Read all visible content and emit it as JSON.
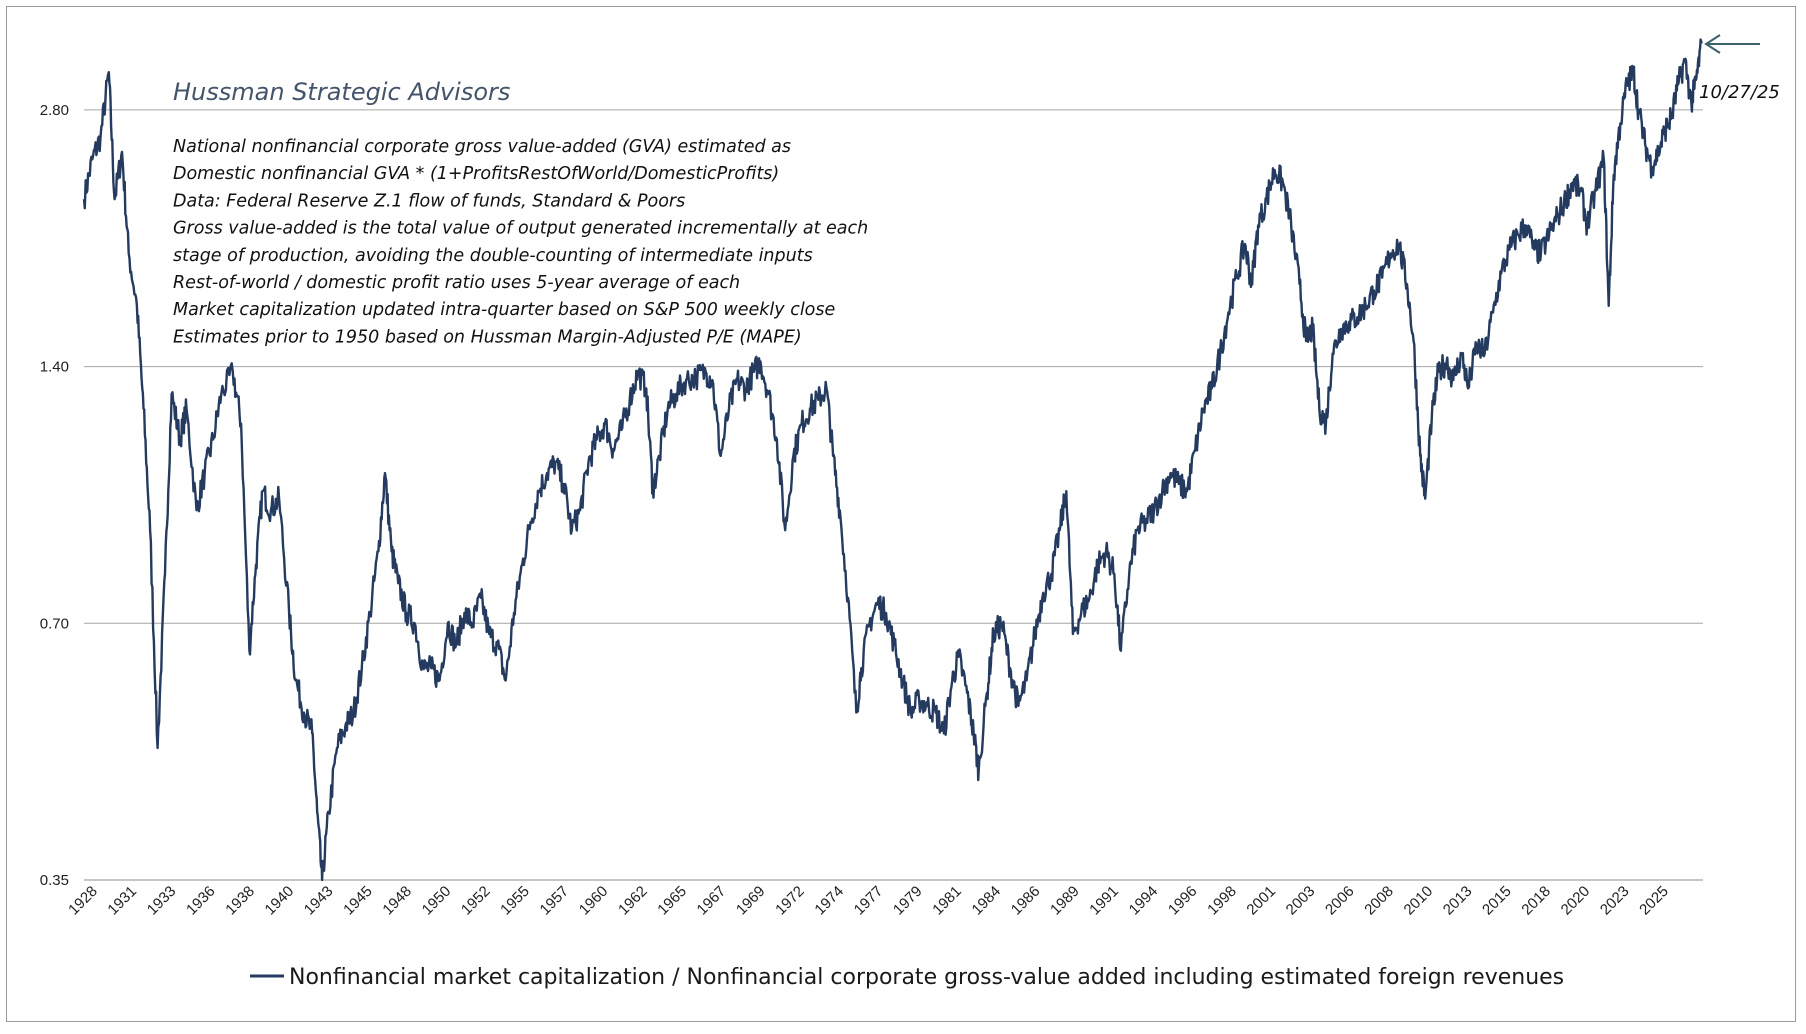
{
  "chart_data": {
    "type": "line",
    "title": "",
    "annotation_brand": "Hussman Strategic Advisors",
    "notes": [
      "National nonfinancial corporate gross value-added (GVA) estimated as",
      "Domestic nonfinancial GVA * (1+ProfitsRestOfWorld/DomesticProfits)",
      "Data: Federal Reserve Z.1 flow of funds, Standard & Poors",
      "Gross value-added is the total value of output generated incrementally at each",
      "stage of production, avoiding the double-counting of intermediate inputs",
      "Rest-of-world / domestic profit ratio uses 5-year average of each",
      "Market capitalization updated intra-quarter based on S&P 500 weekly close",
      "Estimates prior to 1950 based on Hussman Margin-Adjusted P/E (MAPE)"
    ],
    "end_date_label": "10/27/25",
    "y_scale": "log",
    "ylim": [
      0.35,
      3.4
    ],
    "y_ticks": [
      "2.80",
      "1.40",
      "0.70",
      "0.35"
    ],
    "y_tick_values": [
      2.8,
      1.4,
      0.7,
      0.35
    ],
    "x_range": [
      1928,
      2025.9
    ],
    "x_ticks": [
      "1928",
      "1931",
      "1933",
      "1936",
      "1938",
      "1940",
      "1943",
      "1945",
      "1948",
      "1950",
      "1952",
      "1955",
      "1957",
      "1960",
      "1962",
      "1965",
      "1967",
      "1969",
      "1972",
      "1974",
      "1977",
      "1979",
      "1981",
      "1984",
      "1986",
      "1989",
      "1991",
      "1994",
      "1996",
      "1998",
      "2001",
      "2003",
      "2006",
      "2008",
      "2010",
      "2013",
      "2015",
      "2018",
      "2020",
      "2023",
      "2025"
    ],
    "grid": "horizontal",
    "legend_position": "bottom",
    "series": [
      {
        "name": "Nonfinancial market capitalization / Nonfinancial corporate gross-value added including estimated foreign revenues",
        "color": "#243a5e",
        "points": [
          [
            1928.0,
            2.2
          ],
          [
            1928.5,
            2.45
          ],
          [
            1929.0,
            2.6
          ],
          [
            1929.5,
            3.1
          ],
          [
            1929.85,
            2.2
          ],
          [
            1930.3,
            2.5
          ],
          [
            1930.7,
            1.9
          ],
          [
            1931.2,
            1.65
          ],
          [
            1931.6,
            1.25
          ],
          [
            1932.0,
            0.9
          ],
          [
            1932.45,
            0.5
          ],
          [
            1932.9,
            0.8
          ],
          [
            1933.3,
            1.3
          ],
          [
            1933.8,
            1.15
          ],
          [
            1934.2,
            1.25
          ],
          [
            1934.8,
            0.95
          ],
          [
            1935.3,
            1.05
          ],
          [
            1935.8,
            1.15
          ],
          [
            1936.3,
            1.3
          ],
          [
            1937.0,
            1.38
          ],
          [
            1937.5,
            1.2
          ],
          [
            1938.0,
            0.65
          ],
          [
            1938.4,
            0.82
          ],
          [
            1938.8,
            1.0
          ],
          [
            1939.3,
            0.95
          ],
          [
            1939.8,
            0.98
          ],
          [
            1940.4,
            0.72
          ],
          [
            1940.8,
            0.6
          ],
          [
            1941.3,
            0.55
          ],
          [
            1941.8,
            0.52
          ],
          [
            1942.1,
            0.42
          ],
          [
            1942.4,
            0.35
          ],
          [
            1942.8,
            0.42
          ],
          [
            1943.3,
            0.5
          ],
          [
            1943.8,
            0.53
          ],
          [
            1944.3,
            0.55
          ],
          [
            1944.8,
            0.62
          ],
          [
            1945.3,
            0.72
          ],
          [
            1945.8,
            0.85
          ],
          [
            1946.2,
            1.05
          ],
          [
            1946.6,
            0.85
          ],
          [
            1947.0,
            0.78
          ],
          [
            1947.5,
            0.72
          ],
          [
            1948.0,
            0.7
          ],
          [
            1948.5,
            0.62
          ],
          [
            1949.0,
            0.62
          ],
          [
            1949.5,
            0.6
          ],
          [
            1950.0,
            0.7
          ],
          [
            1950.5,
            0.66
          ],
          [
            1951.0,
            0.72
          ],
          [
            1951.5,
            0.7
          ],
          [
            1952.0,
            0.75
          ],
          [
            1952.5,
            0.68
          ],
          [
            1953.0,
            0.66
          ],
          [
            1953.5,
            0.6
          ],
          [
            1954.0,
            0.72
          ],
          [
            1954.5,
            0.82
          ],
          [
            1955.0,
            0.92
          ],
          [
            1955.5,
            1.0
          ],
          [
            1956.0,
            1.05
          ],
          [
            1956.5,
            1.08
          ],
          [
            1957.0,
            1.02
          ],
          [
            1957.5,
            0.9
          ],
          [
            1958.0,
            0.95
          ],
          [
            1958.5,
            1.08
          ],
          [
            1959.0,
            1.15
          ],
          [
            1959.5,
            1.2
          ],
          [
            1960.0,
            1.12
          ],
          [
            1960.5,
            1.18
          ],
          [
            1961.0,
            1.28
          ],
          [
            1961.5,
            1.38
          ],
          [
            1962.0,
            1.32
          ],
          [
            1962.4,
            1.0
          ],
          [
            1962.8,
            1.1
          ],
          [
            1963.3,
            1.25
          ],
          [
            1963.8,
            1.3
          ],
          [
            1964.4,
            1.35
          ],
          [
            1965.0,
            1.36
          ],
          [
            1965.6,
            1.38
          ],
          [
            1966.0,
            1.35
          ],
          [
            1966.5,
            1.1
          ],
          [
            1967.0,
            1.25
          ],
          [
            1967.5,
            1.35
          ],
          [
            1968.0,
            1.32
          ],
          [
            1968.5,
            1.38
          ],
          [
            1968.9,
            1.42
          ],
          [
            1969.4,
            1.3
          ],
          [
            1969.9,
            1.15
          ],
          [
            1970.4,
            0.9
          ],
          [
            1970.9,
            1.1
          ],
          [
            1971.4,
            1.2
          ],
          [
            1971.9,
            1.25
          ],
          [
            1972.4,
            1.28
          ],
          [
            1972.9,
            1.32
          ],
          [
            1973.3,
            1.1
          ],
          [
            1973.7,
            0.95
          ],
          [
            1974.2,
            0.75
          ],
          [
            1974.7,
            0.55
          ],
          [
            1975.0,
            0.62
          ],
          [
            1975.5,
            0.7
          ],
          [
            1976.0,
            0.74
          ],
          [
            1976.5,
            0.72
          ],
          [
            1977.0,
            0.66
          ],
          [
            1977.5,
            0.6
          ],
          [
            1978.0,
            0.55
          ],
          [
            1978.5,
            0.57
          ],
          [
            1979.0,
            0.56
          ],
          [
            1979.5,
            0.55
          ],
          [
            1980.0,
            0.52
          ],
          [
            1980.5,
            0.6
          ],
          [
            1980.9,
            0.64
          ],
          [
            1981.4,
            0.58
          ],
          [
            1981.8,
            0.52
          ],
          [
            1982.1,
            0.47
          ],
          [
            1982.6,
            0.58
          ],
          [
            1983.0,
            0.68
          ],
          [
            1983.5,
            0.7
          ],
          [
            1984.0,
            0.62
          ],
          [
            1984.5,
            0.56
          ],
          [
            1985.0,
            0.6
          ],
          [
            1985.5,
            0.68
          ],
          [
            1986.0,
            0.76
          ],
          [
            1986.5,
            0.8
          ],
          [
            1987.0,
            0.9
          ],
          [
            1987.4,
            1.0
          ],
          [
            1987.8,
            0.68
          ],
          [
            1988.3,
            0.72
          ],
          [
            1988.8,
            0.75
          ],
          [
            1989.3,
            0.82
          ],
          [
            1989.8,
            0.85
          ],
          [
            1990.3,
            0.8
          ],
          [
            1990.7,
            0.65
          ],
          [
            1991.2,
            0.8
          ],
          [
            1991.7,
            0.9
          ],
          [
            1992.2,
            0.92
          ],
          [
            1992.7,
            0.95
          ],
          [
            1993.2,
            1.0
          ],
          [
            1993.7,
            1.05
          ],
          [
            1994.2,
            1.02
          ],
          [
            1994.7,
            1.0
          ],
          [
            1995.2,
            1.12
          ],
          [
            1995.7,
            1.25
          ],
          [
            1996.2,
            1.32
          ],
          [
            1996.7,
            1.45
          ],
          [
            1997.2,
            1.62
          ],
          [
            1997.7,
            1.78
          ],
          [
            1998.2,
            1.95
          ],
          [
            1998.6,
            1.75
          ],
          [
            1999.0,
            2.05
          ],
          [
            1999.5,
            2.2
          ],
          [
            2000.0,
            2.38
          ],
          [
            2000.5,
            2.3
          ],
          [
            2001.0,
            2.05
          ],
          [
            2001.5,
            1.75
          ],
          [
            2001.9,
            1.5
          ],
          [
            2002.3,
            1.55
          ],
          [
            2002.7,
            1.25
          ],
          [
            2003.1,
            1.2
          ],
          [
            2003.5,
            1.45
          ],
          [
            2004.0,
            1.55
          ],
          [
            2004.5,
            1.58
          ],
          [
            2005.0,
            1.6
          ],
          [
            2005.5,
            1.65
          ],
          [
            2006.0,
            1.72
          ],
          [
            2006.5,
            1.78
          ],
          [
            2007.0,
            1.9
          ],
          [
            2007.5,
            1.95
          ],
          [
            2008.0,
            1.75
          ],
          [
            2008.4,
            1.5
          ],
          [
            2008.8,
            1.1
          ],
          [
            2009.1,
            0.98
          ],
          [
            2009.5,
            1.22
          ],
          [
            2009.9,
            1.38
          ],
          [
            2010.4,
            1.42
          ],
          [
            2010.8,
            1.35
          ],
          [
            2011.3,
            1.45
          ],
          [
            2011.7,
            1.32
          ],
          [
            2012.2,
            1.48
          ],
          [
            2012.7,
            1.45
          ],
          [
            2013.2,
            1.62
          ],
          [
            2013.7,
            1.8
          ],
          [
            2014.2,
            1.92
          ],
          [
            2014.7,
            2.0
          ],
          [
            2015.2,
            2.05
          ],
          [
            2015.7,
            1.92
          ],
          [
            2016.1,
            1.9
          ],
          [
            2016.6,
            2.0
          ],
          [
            2017.1,
            2.1
          ],
          [
            2017.6,
            2.2
          ],
          [
            2018.0,
            2.3
          ],
          [
            2018.5,
            2.25
          ],
          [
            2018.9,
            2.05
          ],
          [
            2019.4,
            2.25
          ],
          [
            2019.9,
            2.45
          ],
          [
            2020.2,
            1.65
          ],
          [
            2020.5,
            2.35
          ],
          [
            2020.9,
            2.7
          ],
          [
            2021.3,
            3.0
          ],
          [
            2021.7,
            3.1
          ],
          [
            2022.0,
            2.8
          ],
          [
            2022.4,
            2.55
          ],
          [
            2022.8,
            2.4
          ],
          [
            2023.2,
            2.5
          ],
          [
            2023.6,
            2.65
          ],
          [
            2024.0,
            2.75
          ],
          [
            2024.4,
            3.0
          ],
          [
            2024.8,
            3.2
          ],
          [
            2025.2,
            2.85
          ],
          [
            2025.5,
            3.05
          ],
          [
            2025.82,
            3.35
          ]
        ]
      }
    ]
  }
}
